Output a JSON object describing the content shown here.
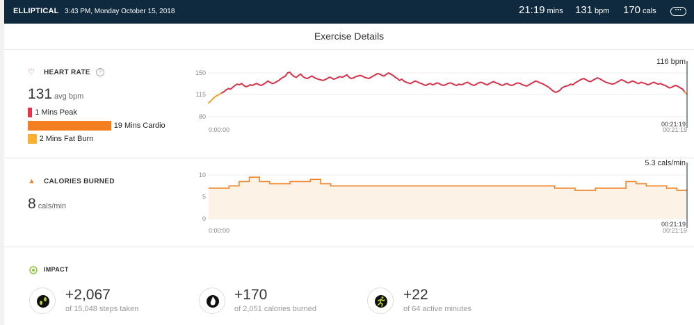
{
  "header": {
    "activity": "ELLIPTICAL",
    "datetime": "3:43 PM, Monday October 15, 2018",
    "duration": {
      "value": "21:19",
      "unit": "mins"
    },
    "heart_rate": {
      "value": "131",
      "unit": "bpm"
    },
    "calories": {
      "value": "170",
      "unit": "cals"
    },
    "more_icon": "ellipsis-icon"
  },
  "page_title": "Exercise Details",
  "heart_rate": {
    "label": "HEART RATE",
    "icon": "heart-icon",
    "help_icon": "help-icon",
    "avg_value": "131",
    "avg_unit": "avg bpm",
    "zones": [
      {
        "label": "1 Mins Peak",
        "minutes": 1,
        "color": "#e8334a"
      },
      {
        "label": "19 Mins Cardio",
        "minutes": 19,
        "color": "#f47f20"
      },
      {
        "label": "2 Mins Fat Burn",
        "minutes": 2,
        "color": "#fbb033"
      }
    ]
  },
  "calories": {
    "label": "CALORIES BURNED",
    "icon": "flame-icon",
    "value": "8",
    "unit": "cals/min"
  },
  "impact": {
    "label": "IMPACT",
    "icon": "target-icon",
    "items": [
      {
        "value": "+2,067",
        "sub": "of 15,048 steps taken",
        "icon": "footprints-icon"
      },
      {
        "value": "+170",
        "sub": "of 2,051 calories burned",
        "icon": "flame-badge-icon"
      },
      {
        "value": "+22",
        "sub": "of 64 active minutes",
        "icon": "runner-icon"
      }
    ]
  },
  "chart_data": [
    {
      "type": "line",
      "yticks": [
        150,
        115,
        80
      ],
      "ylim": [
        80,
        155
      ],
      "x_start_label": "0:00:00",
      "x_end_label": "00:21:19",
      "cursor_time": "00:21:19",
      "cursor_value": "116 bpm",
      "line_color": "#d6344a",
      "low_color": "#f0a032",
      "series": [
        {
          "values": [
            102,
            105,
            109,
            112,
            114,
            116,
            118,
            120,
            123,
            125,
            124,
            127,
            130,
            132,
            131,
            133,
            130,
            128,
            129,
            131,
            130,
            132,
            133,
            131,
            130,
            132,
            134,
            137,
            135,
            133,
            134,
            136,
            138,
            141,
            143,
            145,
            150,
            151,
            147,
            144,
            143,
            146,
            148,
            144,
            142,
            141,
            143,
            145,
            143,
            141,
            140,
            139,
            138,
            139,
            141,
            143,
            142,
            140,
            141,
            143,
            144,
            143,
            145,
            147,
            143,
            141,
            142,
            144,
            145,
            146,
            145,
            143,
            142,
            141,
            143,
            145,
            147,
            149,
            148,
            146,
            145,
            148,
            150,
            148,
            146,
            143,
            141,
            138,
            140,
            137,
            135,
            134,
            133,
            135,
            137,
            136,
            134,
            133,
            131,
            130,
            132,
            133,
            131,
            132,
            134,
            133,
            131,
            130,
            131,
            133,
            134,
            133,
            131,
            130,
            132,
            131,
            132,
            134,
            135,
            133,
            131,
            130,
            132,
            134,
            135,
            134,
            132,
            131,
            133,
            135,
            136,
            134,
            133,
            131,
            130,
            132,
            133,
            131,
            130,
            131,
            133,
            134,
            133,
            131,
            130,
            129,
            131,
            133,
            135,
            137,
            136,
            134,
            133,
            131,
            129,
            127,
            124,
            121,
            119,
            120,
            122,
            126,
            128,
            129,
            130,
            132,
            131,
            134,
            136,
            138,
            140,
            141,
            139,
            137,
            136,
            138,
            140,
            142,
            141,
            139,
            137,
            135,
            134,
            133,
            132,
            133,
            135,
            137,
            139,
            138,
            136,
            134,
            135,
            137,
            136,
            134,
            133,
            135,
            134,
            133,
            131,
            132,
            134,
            135,
            133,
            132,
            133,
            131,
            130,
            128,
            126,
            127,
            129,
            130,
            128,
            126,
            124,
            119,
            116
          ]
        }
      ]
    },
    {
      "type": "area",
      "yticks": [
        10,
        5,
        0
      ],
      "ylim": [
        0,
        11
      ],
      "x_start_label": "0:00:00",
      "x_end_label": "00:21:19",
      "cursor_time": "00:21:19",
      "cursor_value": "5.3 cals/min",
      "line_color": "#f0852c",
      "fill_color": "#fdf2e6",
      "series": [
        {
          "values": [
            7,
            7,
            7.5,
            8.5,
            9.5,
            8.5,
            8,
            8,
            8.5,
            8.5,
            9,
            8,
            7.5,
            7.5,
            7.5,
            7.5,
            7.5,
            7.5,
            7.5,
            7.5,
            7.5,
            7.5,
            7.5,
            7.5,
            7.5,
            7.5,
            7.5,
            7.5,
            7.5,
            7.5,
            7.5,
            7.5,
            7.5,
            7.5,
            7,
            7,
            6.5,
            6.5,
            7,
            7,
            7,
            8.5,
            8,
            7.5,
            7.5,
            7,
            6.5
          ]
        }
      ]
    }
  ]
}
